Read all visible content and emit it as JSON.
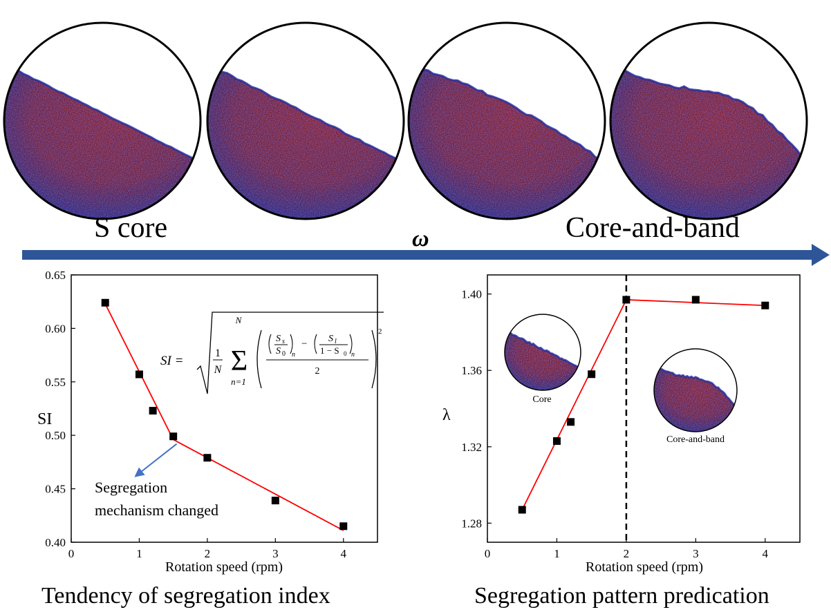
{
  "top": {
    "pattern_left_label": "S core",
    "pattern_right_label": "Core-and-band",
    "arrow_label": "ω",
    "colors": {
      "arrow": "#2e5597",
      "particles_red": "#8f1b10",
      "particles_blue": "#1e2a9e"
    },
    "drums": [
      {
        "surface_shape": "straight",
        "surface_roughness": 0.2
      },
      {
        "surface_shape": "straight",
        "surface_roughness": 0.4
      },
      {
        "surface_shape": "slight-s",
        "surface_roughness": 0.6
      },
      {
        "surface_shape": "s-curve",
        "surface_roughness": 0.8
      }
    ]
  },
  "chart_data": [
    {
      "type": "line",
      "title": "Tendency of segregation index",
      "xlabel": "Rotation speed (rpm)",
      "ylabel": "SI",
      "xlim": [
        0,
        4.5
      ],
      "ylim": [
        0.4,
        0.65
      ],
      "xticks": [
        0,
        1,
        2,
        3,
        4
      ],
      "yticks": [
        0.4,
        0.45,
        0.5,
        0.55,
        0.6,
        0.65
      ],
      "ytick_labels": [
        "0.40",
        "0.45",
        "0.50",
        "0.55",
        "0.60",
        "0.65"
      ],
      "series": [
        {
          "marker": "square",
          "x": [
            0.5,
            1.0,
            1.2,
            1.5,
            2.0,
            3.0,
            4.0
          ],
          "y": [
            0.624,
            0.557,
            0.523,
            0.499,
            0.479,
            0.439,
            0.415
          ]
        }
      ],
      "fit_lines": [
        {
          "color": "#ff0000",
          "x": [
            0.5,
            1.5
          ],
          "y": [
            0.623,
            0.496
          ]
        },
        {
          "color": "#ff0000",
          "x": [
            1.5,
            4.0
          ],
          "y": [
            0.496,
            0.411
          ]
        }
      ],
      "annotation": {
        "lines": [
          "Segregation",
          "mechanism changed"
        ],
        "arrow_color": "#4472c4",
        "arrow_from": [
          1.55,
          0.492
        ],
        "arrow_to": [
          0.95,
          0.462
        ]
      },
      "formula": {
        "lhs": "SI =",
        "frac_one": "1",
        "frac_n": "N",
        "sum_top": "N",
        "sum_bottom": "n=1",
        "ss": "S",
        "ss_sub": "s",
        "s0": "S",
        "s0_sub": "0",
        "sl": "S",
        "sl_sub": "l",
        "one_minus": "1 − S",
        "one_minus_sub": "0",
        "sub_n": "n",
        "minus": "−",
        "two": "2",
        "power": "2"
      }
    },
    {
      "type": "line",
      "title": "Segregation pattern predication",
      "xlabel": "Rotation speed (rpm)",
      "ylabel": "λ",
      "xlim": [
        0,
        4.5
      ],
      "ylim": [
        1.27,
        1.41
      ],
      "xticks": [
        0,
        1,
        2,
        3,
        4
      ],
      "yticks": [
        1.28,
        1.32,
        1.36,
        1.4
      ],
      "ytick_labels": [
        "1.28",
        "1.32",
        "1.36",
        "1.40"
      ],
      "series": [
        {
          "marker": "square",
          "x": [
            0.5,
            1.0,
            1.2,
            1.5,
            2.0,
            3.0,
            4.0
          ],
          "y": [
            1.287,
            1.323,
            1.333,
            1.358,
            1.397,
            1.397,
            1.394
          ]
        }
      ],
      "fit_lines": [
        {
          "color": "#ff0000",
          "x": [
            0.5,
            2.0
          ],
          "y": [
            1.287,
            1.397
          ]
        },
        {
          "color": "#ff0000",
          "x": [
            2.0,
            4.0
          ],
          "y": [
            1.397,
            1.394
          ]
        }
      ],
      "vline": {
        "x": 2,
        "style": "dashed"
      },
      "insets": [
        {
          "label": "Core",
          "shape": "straight"
        },
        {
          "label": "Core-and-band",
          "shape": "s-curve"
        }
      ]
    }
  ]
}
